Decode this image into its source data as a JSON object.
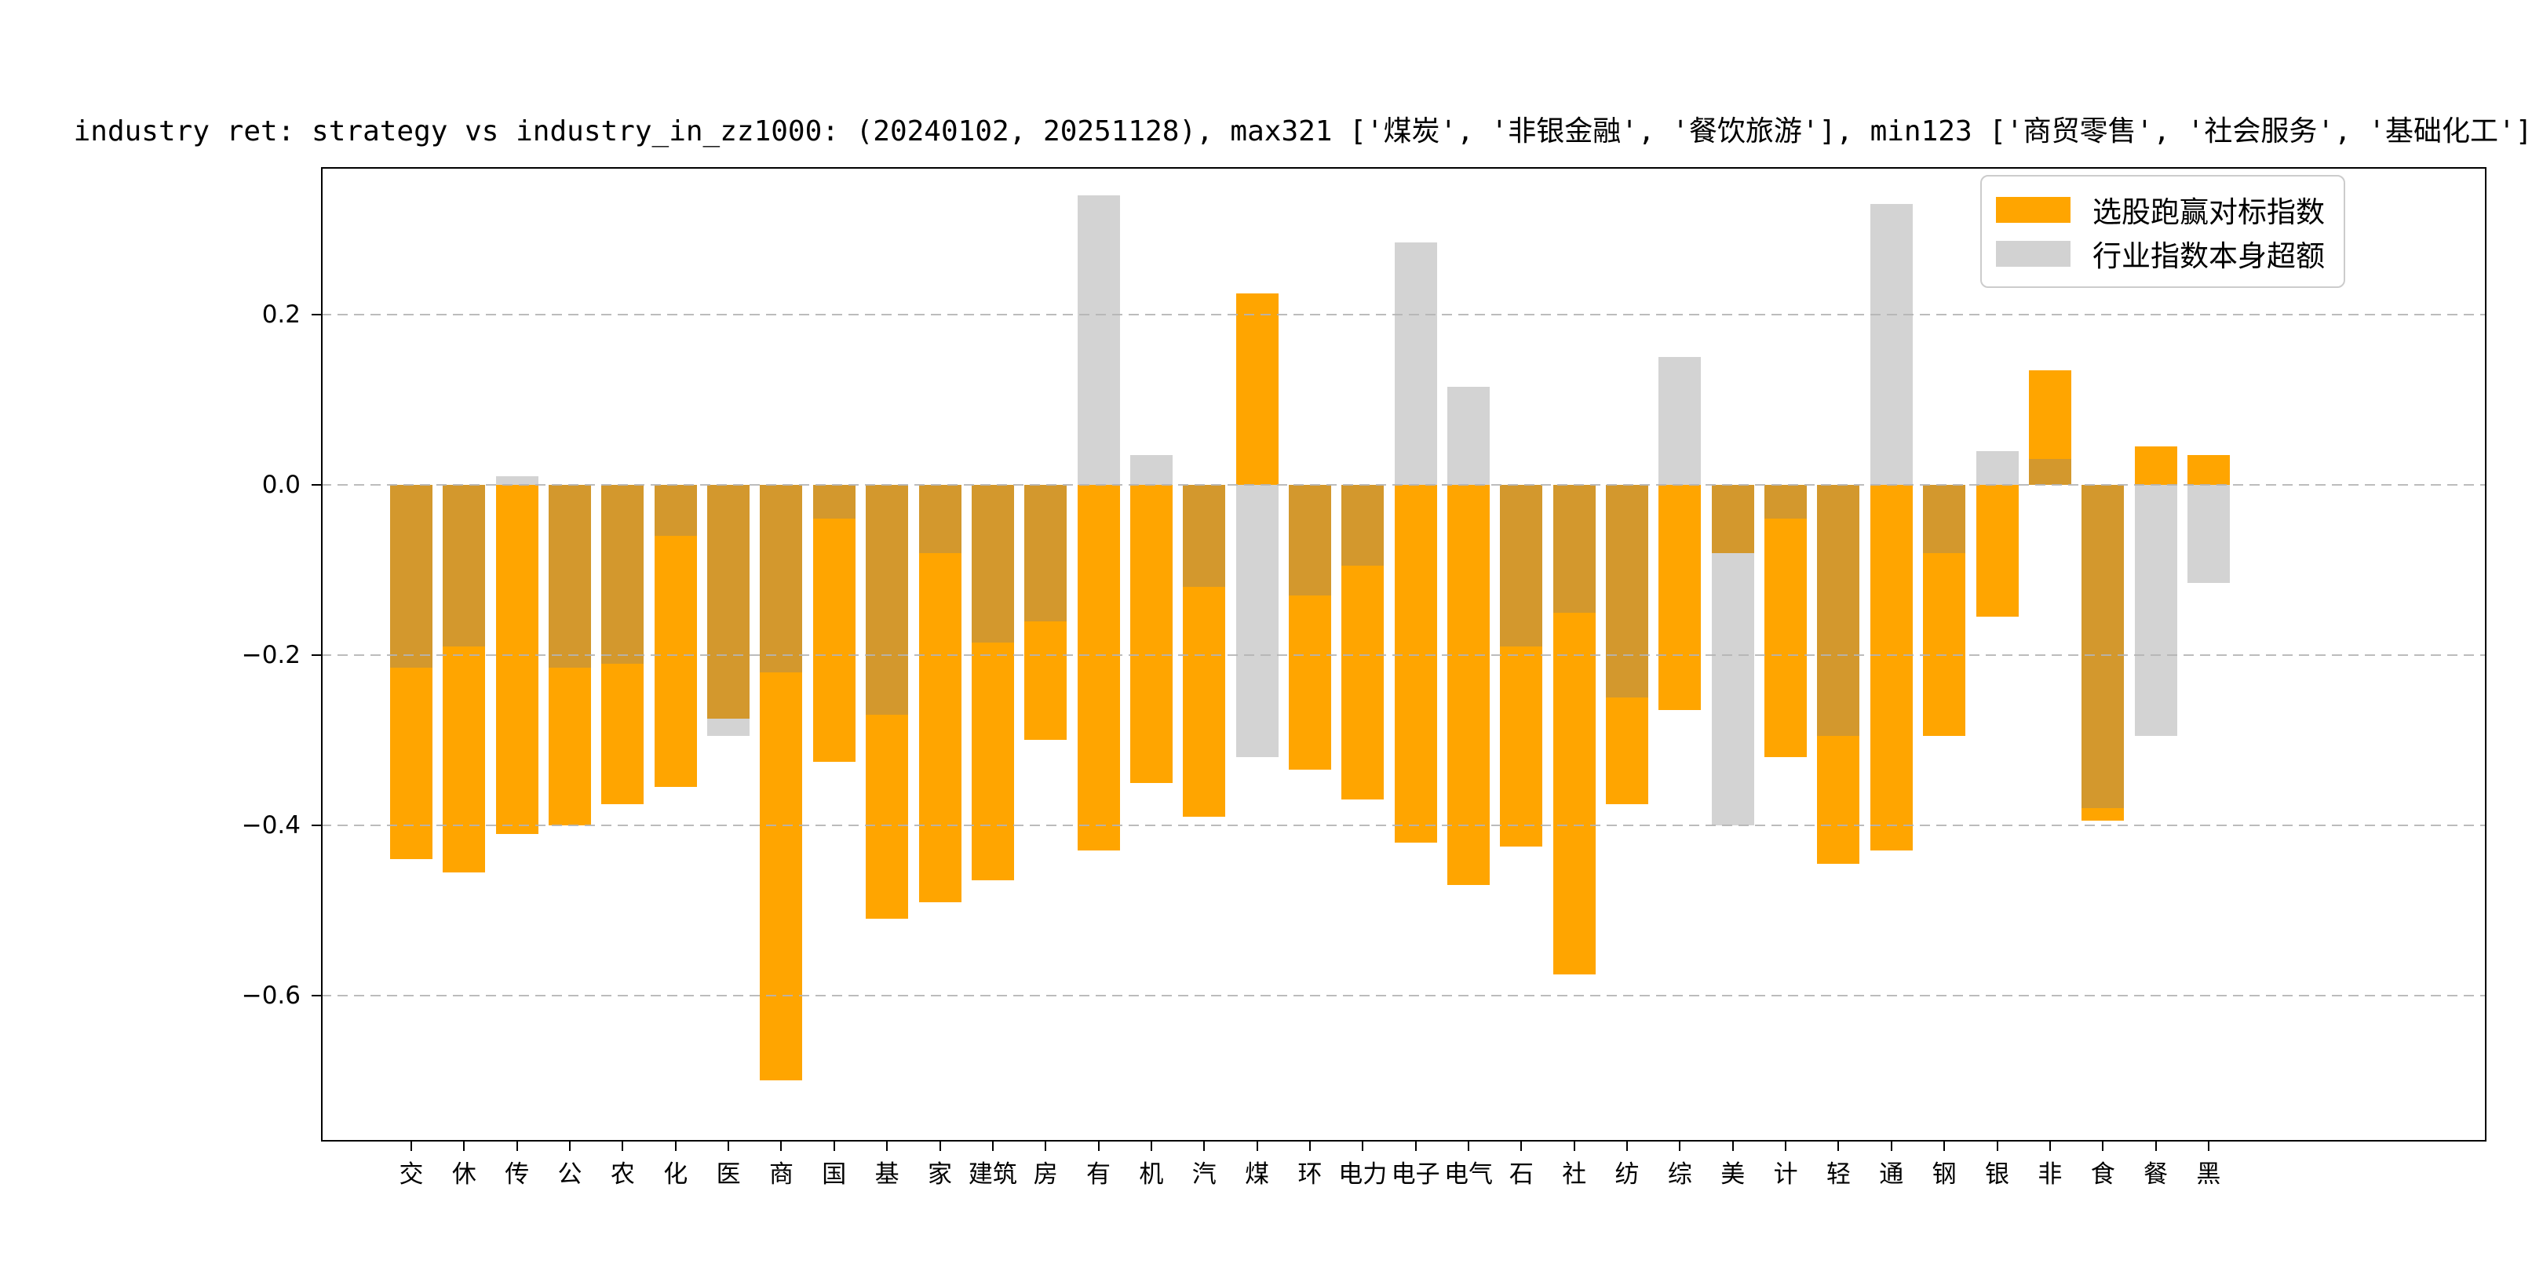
{
  "title": "industry ret: strategy vs industry_in_zz1000: (20240102, 20251128), max321 ['煤炭', '非银金融', '餐饮旅游'], min123 ['商贸零售', '社会服务', '基础化工']",
  "legend": {
    "items": [
      {
        "label": "选股跑赢对标指数",
        "color": "#FFA500"
      },
      {
        "label": "行业指数本身超额",
        "color": "#D2D2D2"
      }
    ]
  },
  "colors": {
    "orange_series": "#FFA500",
    "gray_series_overlay": "rgba(128,128,128,0.35)",
    "grid": "#b4b4b4"
  },
  "chart_data": {
    "type": "bar",
    "title": "industry ret: strategy vs industry_in_zz1000: (20240102, 20251128), max321 ['煤炭', '非银金融', '餐饮旅游'], min123 ['商贸零售', '社会服务', '基础化工']",
    "categories": [
      "交",
      "休",
      "传",
      "公",
      "农",
      "化",
      "医",
      "商",
      "国",
      "基",
      "家",
      "建筑",
      "房",
      "有",
      "机",
      "汽",
      "煤",
      "环",
      "电力",
      "电子",
      "电气",
      "石",
      "社",
      "纺",
      "综",
      "美",
      "计",
      "轻",
      "通",
      "钢",
      "银",
      "非",
      "食",
      "餐",
      "黑"
    ],
    "series": [
      {
        "name": "选股跑赢对标指数",
        "color": "#FFA500",
        "values": [
          -0.44,
          -0.455,
          -0.41,
          -0.4,
          -0.375,
          -0.355,
          -0.275,
          -0.7,
          -0.325,
          -0.51,
          -0.49,
          -0.465,
          -0.3,
          -0.43,
          -0.35,
          -0.39,
          0.225,
          -0.335,
          -0.37,
          -0.42,
          -0.47,
          -0.425,
          -0.575,
          -0.375,
          -0.265,
          -0.08,
          -0.32,
          -0.445,
          -0.43,
          -0.295,
          -0.155,
          0.135,
          -0.395,
          0.045,
          0.035
        ]
      },
      {
        "name": "行业指数本身超额",
        "color": "rgba(128,128,128,0.35)",
        "values": [
          -0.215,
          -0.19,
          0.01,
          -0.215,
          -0.21,
          -0.06,
          -0.295,
          -0.22,
          -0.04,
          -0.27,
          -0.08,
          -0.185,
          -0.16,
          0.34,
          0.035,
          -0.12,
          -0.32,
          -0.13,
          -0.095,
          0.285,
          0.115,
          -0.19,
          -0.15,
          -0.25,
          0.15,
          -0.4,
          -0.04,
          -0.295,
          0.33,
          -0.08,
          0.04,
          0.03,
          -0.38,
          -0.295,
          -0.115
        ]
      }
    ],
    "y_axis": {
      "tick_values": [
        0.2,
        0.0,
        -0.2,
        -0.4,
        -0.6
      ],
      "tick_labels": [
        "0.2",
        "0.0",
        "−0.2",
        "−0.4",
        "−0.6"
      ]
    },
    "ylim": [
      -0.7716,
      0.3734
    ],
    "xlabel": "",
    "ylabel": "",
    "grid": "horizontal-dashed",
    "legend_position": "upper right"
  }
}
